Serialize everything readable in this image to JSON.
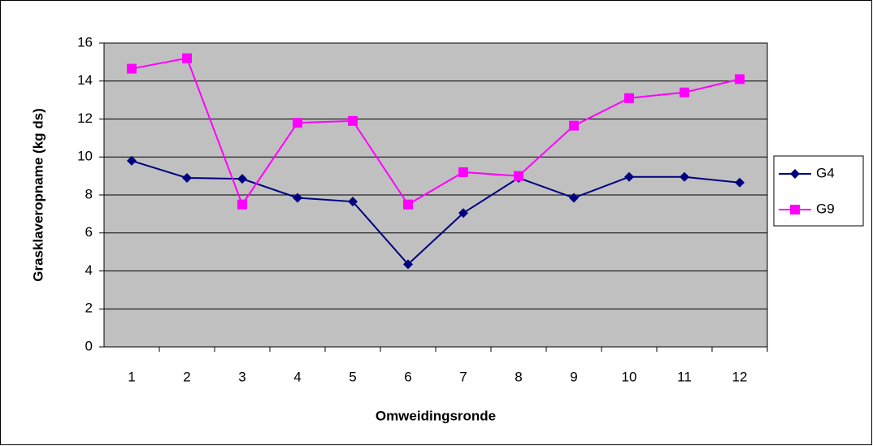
{
  "chart_data": {
    "type": "line",
    "x_label": "Omweidingsronde",
    "y_label": "Grasklaveropname (kg ds)",
    "categories": [
      "1",
      "2",
      "3",
      "4",
      "5",
      "6",
      "7",
      "8",
      "9",
      "10",
      "11",
      "12"
    ],
    "series": [
      {
        "name": "G4",
        "color": "#000080",
        "marker": "diamond",
        "values": [
          9.8,
          8.9,
          8.85,
          7.85,
          7.65,
          4.35,
          7.05,
          8.9,
          7.85,
          8.95,
          8.95,
          8.65
        ]
      },
      {
        "name": "G9",
        "color": "#ff00ff",
        "marker": "square",
        "values": [
          14.65,
          15.2,
          7.5,
          11.8,
          11.9,
          7.5,
          9.2,
          9.0,
          11.65,
          13.1,
          13.4,
          14.1
        ]
      }
    ],
    "ylim": [
      0,
      16
    ],
    "yticks": [
      0,
      2,
      4,
      6,
      8,
      10,
      12,
      14,
      16
    ],
    "grid": true,
    "plot_background": "#c0c0c0",
    "legend": "right"
  }
}
